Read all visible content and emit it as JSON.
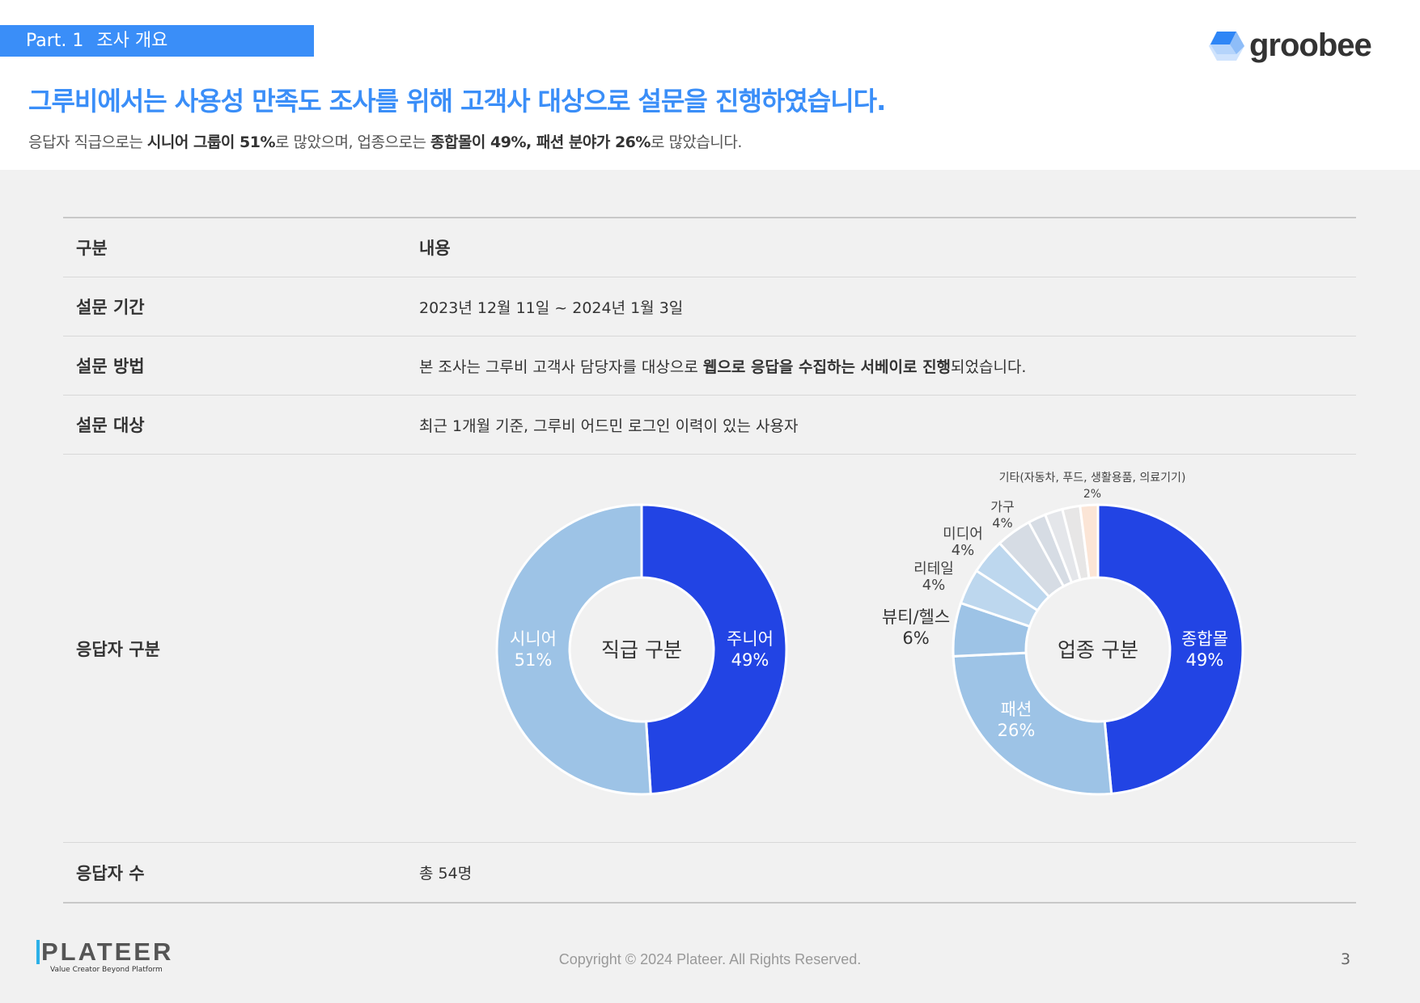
{
  "header": {
    "part_label": "Part. 1",
    "part_title": "조사 개요",
    "part_color": "#3a8ef8",
    "logo": "groobee",
    "title": "그루비에서는 사용성 만족도 조사를 위해 고객사 대상으로 설문을 진행하였습니다.",
    "subtitle": {
      "p1": "응답자 직급으로는 ",
      "b1": "시니어 그룹이 51%",
      "p2": "로 많았으며, 업종으로는 ",
      "b2": "종합몰이 49%, 패션 분야가 26%",
      "p3": "로 많았습니다."
    }
  },
  "table": {
    "header": {
      "col1": "구분",
      "col2": "내용"
    },
    "period": {
      "label": "설문 기간",
      "value": "2023년 12월 11일 ~ 2024년 1월 3일"
    },
    "method": {
      "label": "설문 방법",
      "p1": "본 조사는 그루비 고객사 담당자를 대상으로 ",
      "b1": "웹으로 응답을 수집하는 서베이로 진행",
      "p2": "되었습니다."
    },
    "target": {
      "label": "설문 대상",
      "value": "최근 1개월 기준, 그루비 어드민 로그인 이력이 있는 사용자"
    },
    "respondents": {
      "label": "응답자 구분"
    },
    "count": {
      "label": "응답자 수",
      "value": "총 54명"
    }
  },
  "chart_data": [
    {
      "type": "pie",
      "title": "직급 구분",
      "categories": [
        "주니어",
        "시니어"
      ],
      "values": [
        49,
        51
      ],
      "labels": [
        "49%",
        "51%"
      ],
      "colors": [
        "#2244e4",
        "#9dc3e6"
      ]
    },
    {
      "type": "pie",
      "title": "업종 구분",
      "categories": [
        "종합몰",
        "패션",
        "뷰티/헬스",
        "리테일",
        "미디어",
        "가구",
        "",
        "",
        "",
        "기타(자동차, 푸드, 생활용품, 의료기기)"
      ],
      "values": [
        49,
        26,
        6,
        4,
        4,
        4,
        2,
        2,
        2,
        2
      ],
      "labels": [
        "49%",
        "26%",
        "6%",
        "4%",
        "4%",
        "4%",
        "",
        "",
        "",
        "2%"
      ],
      "colors": [
        "#2244e4",
        "#9dc3e6",
        "#9dc3e6",
        "#bdd7ee",
        "#bdd7ee",
        "#d6dce4",
        "#d6dce4",
        "#e4e6ea",
        "#e7e6e6",
        "#fbe5d6"
      ]
    }
  ],
  "footer": {
    "logo": "PLATEER",
    "logo_tagline": "Value Creator Beyond Platform",
    "copyright": "Copyright © 2024 Plateer. All Rights Reserved.",
    "page": "3"
  }
}
